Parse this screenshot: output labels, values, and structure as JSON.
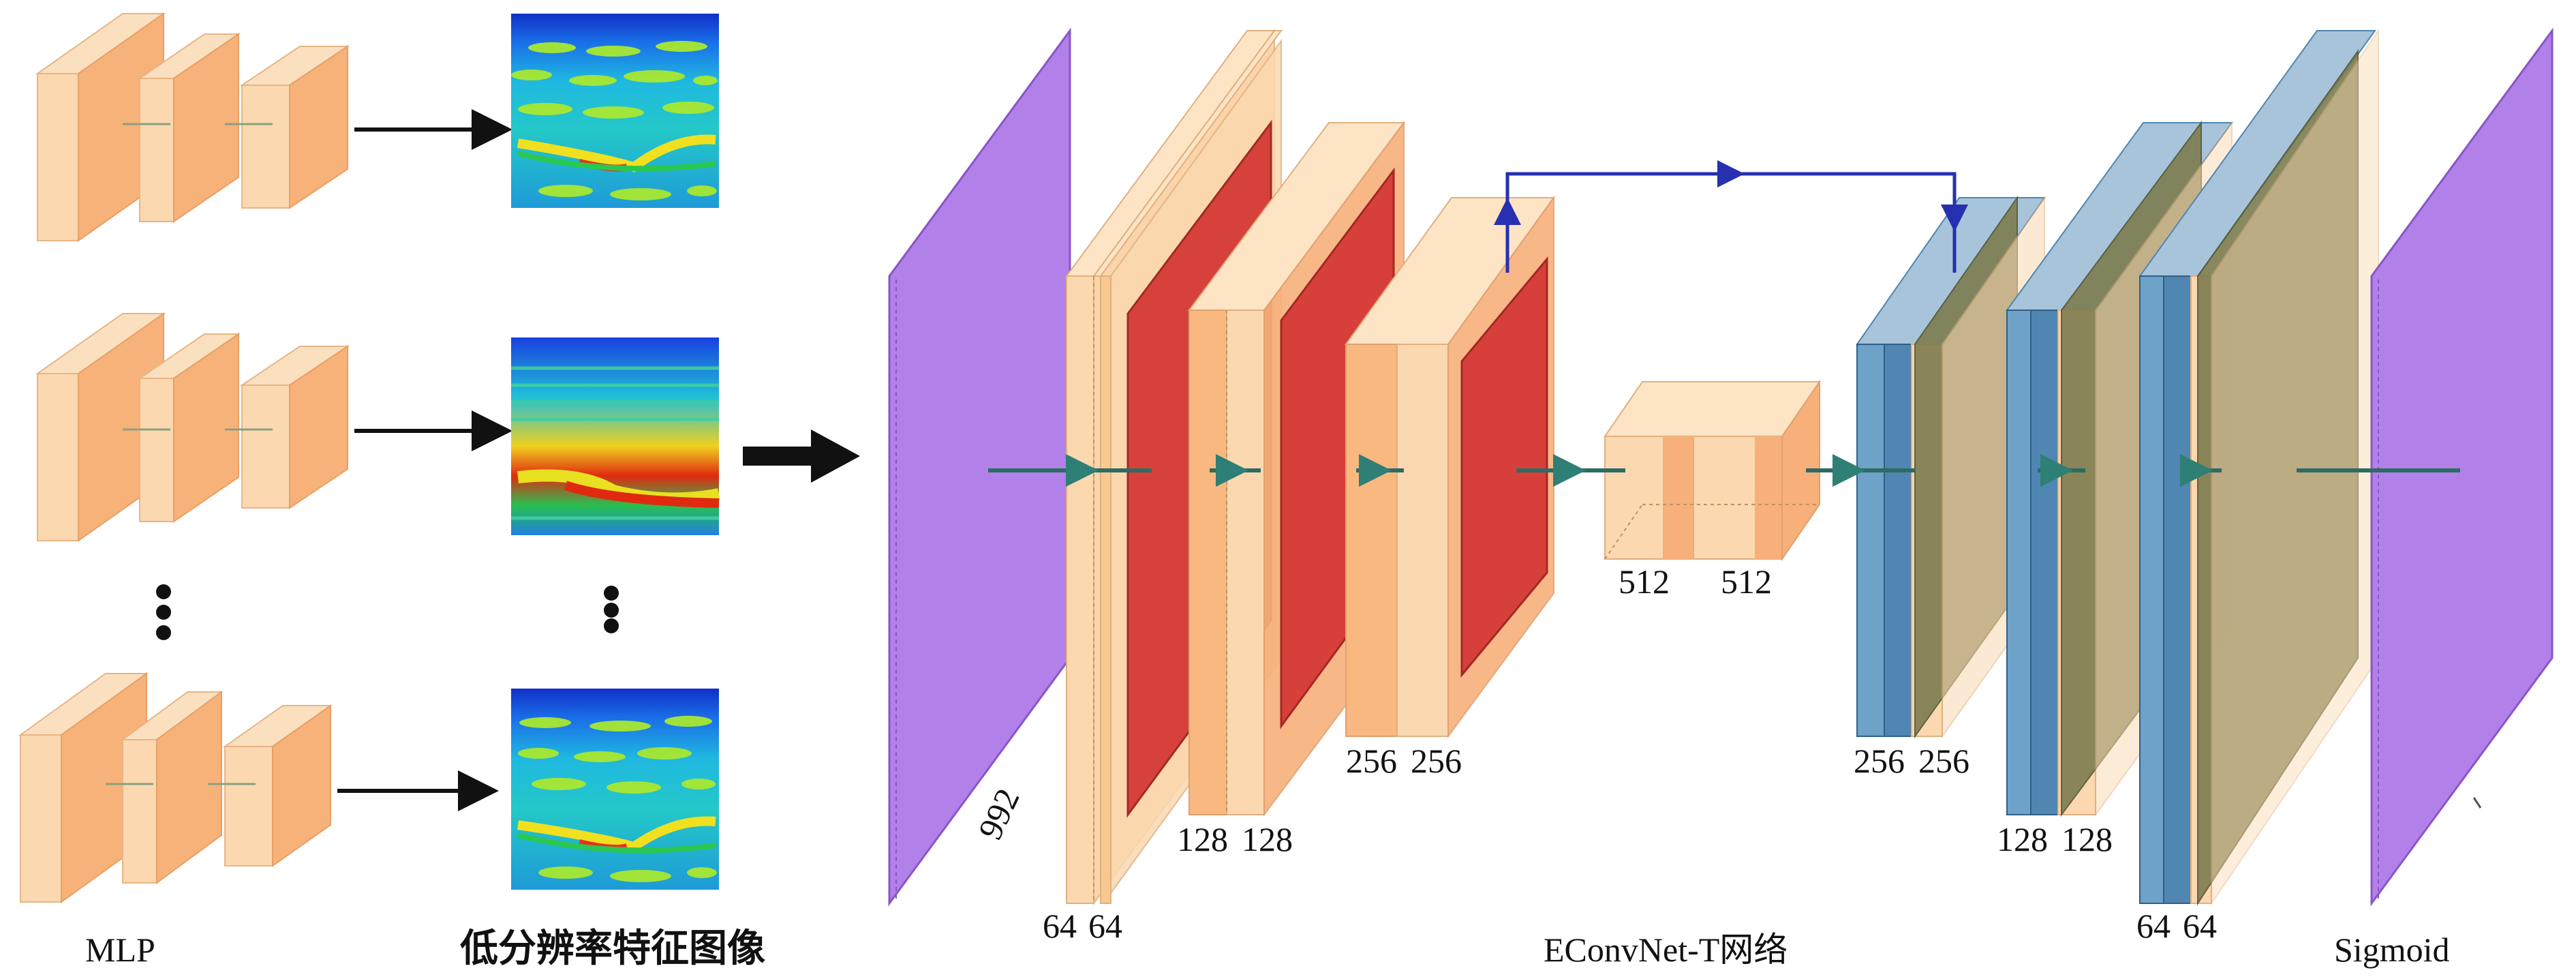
{
  "labels": {
    "mlp": "MLP",
    "feature_images": "低分辨率特征图像",
    "network": "EConvNet-T网络",
    "output": "Sigmoid",
    "input_dim": "992",
    "enc1_a": "64",
    "enc1_b": "64",
    "enc2_a": "128",
    "enc2_b": "128",
    "enc3_a": "256",
    "enc3_b": "256",
    "bott_a": "512",
    "bott_b": "512",
    "dec3_a": "256",
    "dec3_b": "256",
    "dec2_a": "128",
    "dec2_b": "128",
    "dec1_a": "64",
    "dec1_b": "64"
  },
  "colors": {
    "light_orange": "#f9d2a2",
    "orange": "#f6a268",
    "red": "#d63a36",
    "purple": "#b180e8",
    "blue": "#4f86b2",
    "olive": "#8a8a55",
    "teal": "#2e6b63",
    "arrow_blue": "#2630b0",
    "black": "#111111"
  }
}
